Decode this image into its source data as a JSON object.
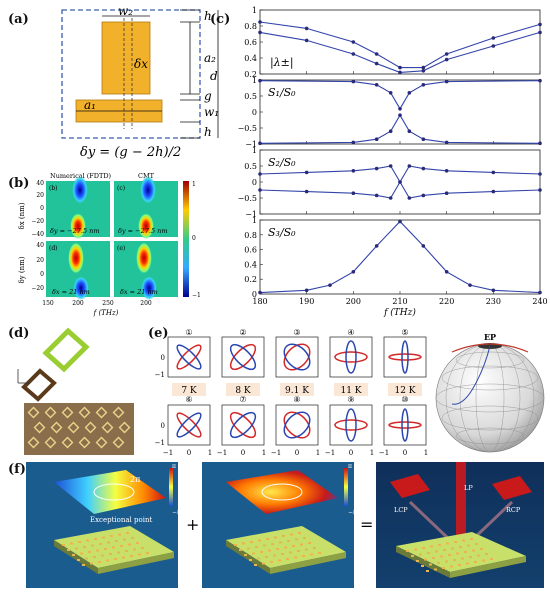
{
  "labels": {
    "a": "(a)",
    "b": "(b)",
    "c": "(c)",
    "d": "(d)",
    "e": "(e)",
    "f": "(f)"
  },
  "panel_a": {
    "w2": "w₂",
    "h": "h",
    "a2": "a₂",
    "d": "d",
    "dx": "δx",
    "g": "g",
    "w1": "w₁",
    "a1": "a₁",
    "formula": "δy = (g − 2h)/2",
    "colors": {
      "bar": "#F2B12B",
      "dash": "#3a5fb0"
    }
  },
  "panel_b": {
    "titles": [
      "Numerical (FDTD)",
      "CMT"
    ],
    "sublabels": [
      "(b)",
      "(c)",
      "(d)",
      "(e)"
    ],
    "conditions": [
      "δy = −27.5 nm",
      "δy = −27.5 nm",
      "δx = 21 nm",
      "δx = 21 nm"
    ],
    "ylabels": [
      "δx (nm)",
      "δy (nm)"
    ],
    "yticks_top": [
      "40",
      "20",
      "0",
      "−20",
      "−40"
    ],
    "yticks_bot": [
      "40",
      "20",
      "0",
      "−20"
    ],
    "xticks": [
      "150",
      "200",
      "250"
    ],
    "xlabel": "f (THz)",
    "colorbar_ticks": [
      "1",
      "0",
      "−1"
    ]
  },
  "panel_c": {
    "xlabel": "f (THz)",
    "xticks": [
      "180",
      "190",
      "200",
      "210",
      "220",
      "230",
      "240"
    ],
    "subplots": [
      {
        "label": "|λ±|",
        "yticks": [
          "1",
          "0.8",
          "0.6",
          "0.4",
          "0.2"
        ]
      },
      {
        "label": "S₁/S₀",
        "yticks": [
          "1",
          "0.5",
          "0",
          "−0.5",
          "−1"
        ]
      },
      {
        "label": "S₂/S₀",
        "yticks": [
          "1",
          "0.5",
          "0",
          "−0.5",
          "−1"
        ]
      },
      {
        "label": "S₃/S₀",
        "yticks": [
          "1",
          "0.8",
          "0.6",
          "0.4",
          "0.2",
          "0"
        ]
      }
    ]
  },
  "panel_e": {
    "numbers": [
      "①",
      "②",
      "③",
      "④",
      "⑤",
      "⑥",
      "⑦",
      "⑧",
      "⑨",
      "⑩"
    ],
    "temps": [
      "7 K",
      "8 K",
      "9.1 K",
      "11 K",
      "12 K"
    ],
    "ticks": [
      "−1",
      "0",
      "1"
    ],
    "ep": "EP"
  },
  "panel_f": {
    "ep_label": "Exceptional point",
    "phase_top": "2π",
    "plus": "+",
    "equals": "=",
    "lp": "LP",
    "lcp": "LCP",
    "rcp": "RCP",
    "cbar1": [
      "π",
      "−π"
    ],
    "cbar2": [
      "π",
      "−π"
    ]
  },
  "chart_data": [
    {
      "type": "line",
      "title": "",
      "xlabel": "f (THz)",
      "xlim": [
        180,
        240
      ],
      "series": [
        {
          "name": "|λ±|",
          "x": [
            180,
            190,
            200,
            205,
            210,
            215,
            220,
            230,
            240
          ],
          "values": [
            0.85,
            0.77,
            0.6,
            0.45,
            0.28,
            0.28,
            0.45,
            0.65,
            0.82
          ]
        },
        {
          "name": "|λ±|",
          "x": [
            180,
            190,
            200,
            205,
            210,
            215,
            220,
            230,
            240
          ],
          "values": [
            0.72,
            0.62,
            0.45,
            0.33,
            0.22,
            0.24,
            0.38,
            0.55,
            0.72
          ]
        },
        {
          "name": "S₁/S₀",
          "x": [
            180,
            200,
            205,
            208,
            210,
            212,
            215,
            220,
            240
          ],
          "values": [
            0.98,
            0.95,
            0.85,
            0.6,
            0.1,
            0.6,
            0.85,
            0.95,
            0.98
          ]
        },
        {
          "name": "S₁/S₀",
          "x": [
            180,
            200,
            205,
            208,
            210,
            212,
            215,
            220,
            240
          ],
          "values": [
            -0.98,
            -0.95,
            -0.85,
            -0.6,
            -0.1,
            -0.6,
            -0.85,
            -0.95,
            -0.98
          ]
        },
        {
          "name": "S₂/S₀",
          "x": [
            180,
            190,
            200,
            205,
            208,
            210,
            212,
            215,
            220,
            230,
            240
          ],
          "values": [
            0.25,
            0.3,
            0.35,
            0.42,
            0.5,
            0.0,
            -0.5,
            -0.42,
            -0.35,
            -0.3,
            -0.25
          ]
        },
        {
          "name": "S₂/S₀",
          "x": [
            180,
            190,
            200,
            205,
            208,
            210,
            212,
            215,
            220,
            230,
            240
          ],
          "values": [
            -0.25,
            -0.3,
            -0.35,
            -0.42,
            -0.5,
            0.0,
            0.5,
            0.42,
            0.35,
            0.3,
            0.25
          ]
        },
        {
          "name": "S₃/S₀",
          "x": [
            180,
            190,
            195,
            200,
            205,
            210,
            215,
            220,
            225,
            230,
            240
          ],
          "values": [
            0.02,
            0.05,
            0.12,
            0.3,
            0.65,
            0.98,
            0.65,
            0.3,
            0.12,
            0.05,
            0.02
          ]
        }
      ]
    }
  ]
}
